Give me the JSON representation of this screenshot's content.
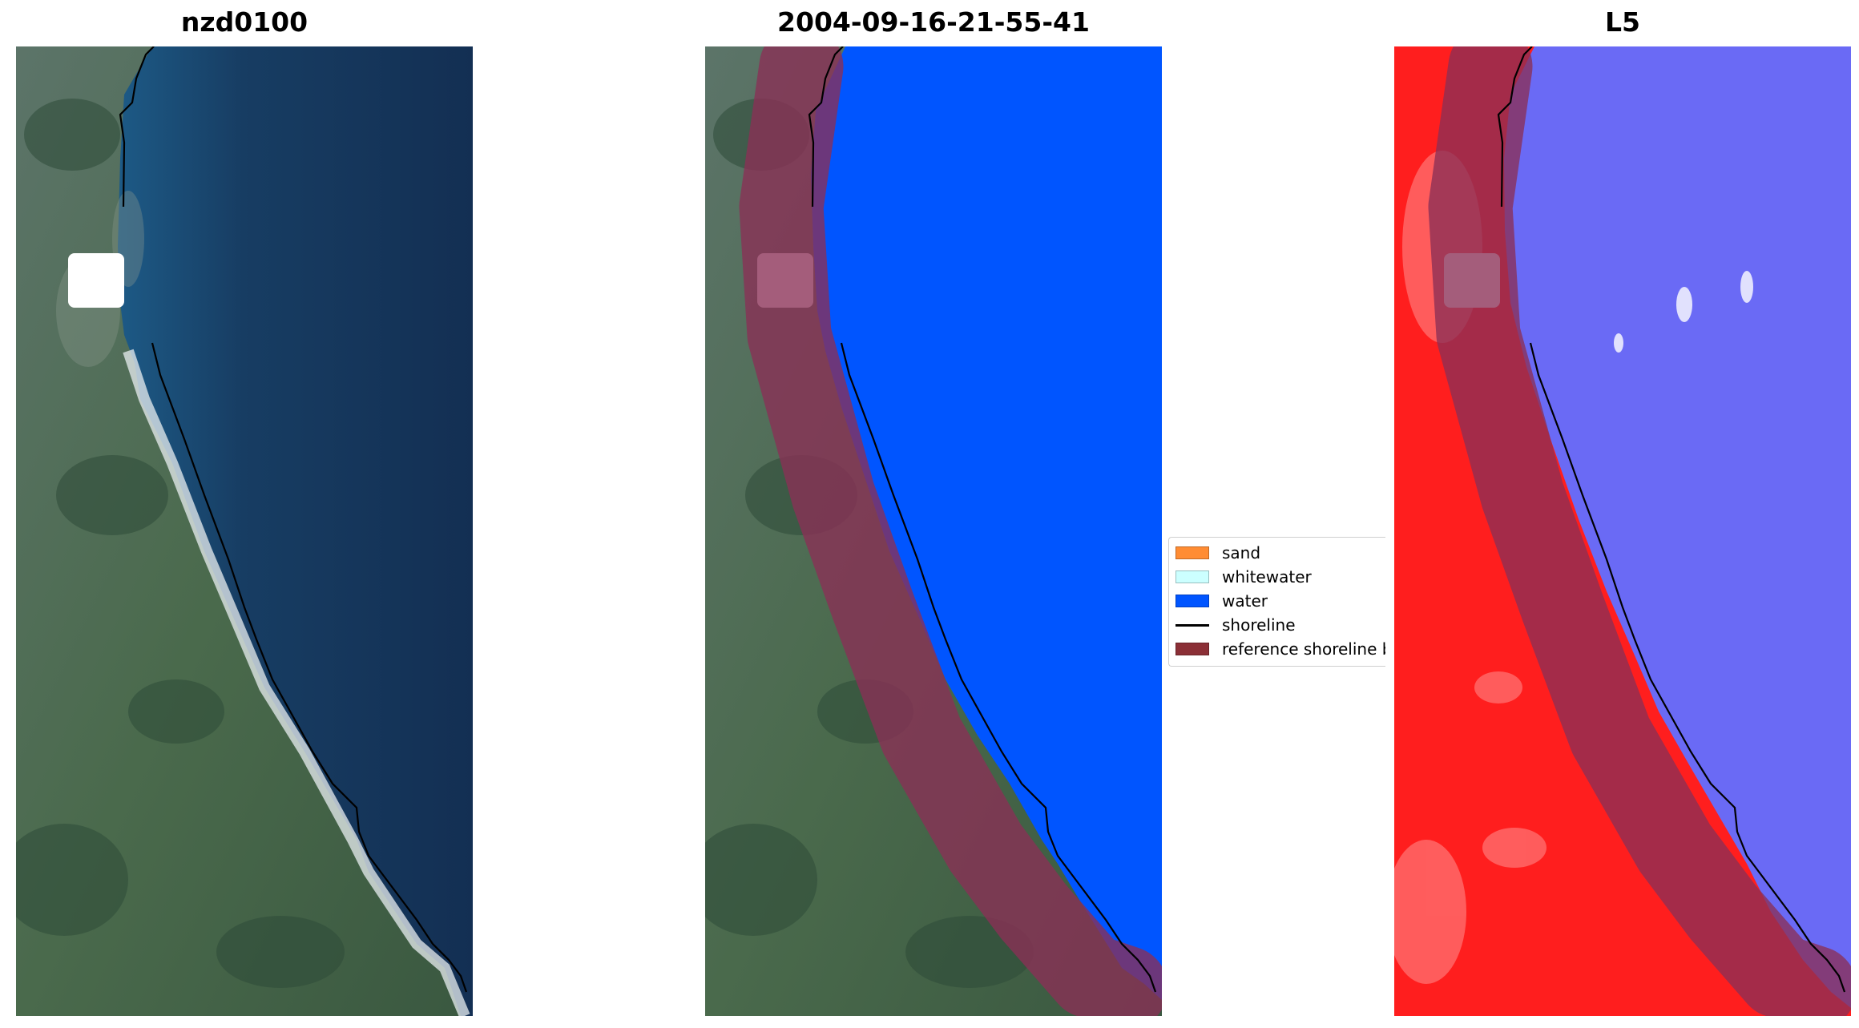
{
  "panels": [
    {
      "title": "nzd0100"
    },
    {
      "title": "2004-09-16-21-55-41"
    },
    {
      "title": "L5"
    }
  ],
  "legend": {
    "items": [
      {
        "label": "sand",
        "color": "#ff8c33",
        "kind": "patch"
      },
      {
        "label": "whitewater",
        "color": "#ccffff",
        "kind": "patch"
      },
      {
        "label": "water",
        "color": "#0055ff",
        "kind": "patch"
      },
      {
        "label": "shoreline",
        "color": "#000000",
        "kind": "line"
      },
      {
        "label": "reference shoreline b",
        "color": "#8b2f36",
        "kind": "patch"
      }
    ]
  },
  "colors": {
    "land": "#4b6650",
    "sea": "#15375c",
    "beach": "#eef3f6",
    "water_class": "#0055ff",
    "buffer": "#8b2f56",
    "index_land": "#ff1e1e",
    "index_water": "#6a6af5"
  }
}
